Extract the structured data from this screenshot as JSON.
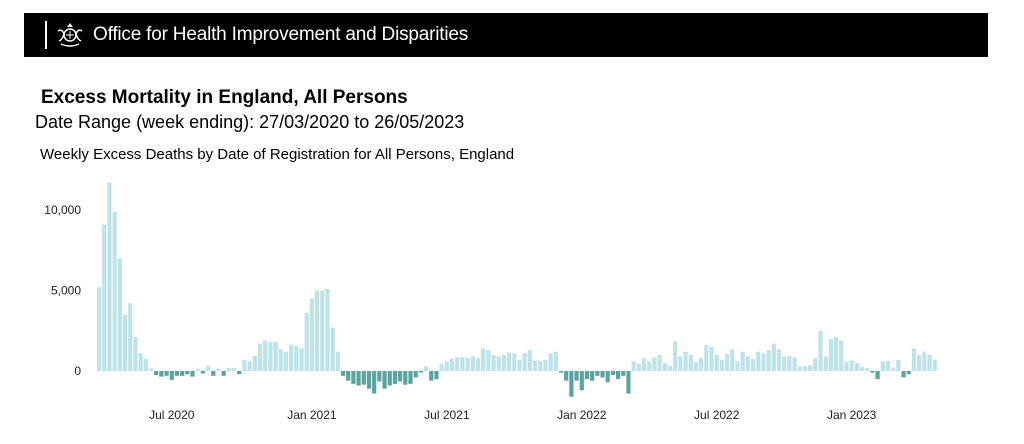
{
  "header": {
    "org_name": "Office for Health Improvement and Disparities",
    "crest_icon": "royal-coat-of-arms-icon"
  },
  "report": {
    "title": "Excess Mortality in England, All Persons",
    "date_range": "Date Range (week ending): 27/03/2020 to 26/05/2023"
  },
  "chart_data": {
    "type": "bar",
    "title": "Weekly Excess Deaths by Date of Registration for All Persons, England",
    "xlabel": "",
    "ylabel": "",
    "ylim": [
      -2000,
      12000
    ],
    "yticks": [
      0,
      5000,
      10000
    ],
    "ytick_labels": [
      "0",
      "5,000",
      "10,000"
    ],
    "x_tick_labels": [
      {
        "label": "Jul 2020",
        "week_index": 14
      },
      {
        "label": "Jan 2021",
        "week_index": 41
      },
      {
        "label": "Jul 2021",
        "week_index": 67
      },
      {
        "label": "Jan 2022",
        "week_index": 93
      },
      {
        "label": "Jul 2022",
        "week_index": 119
      },
      {
        "label": "Jan 2023",
        "week_index": 145
      }
    ],
    "positive_color": "#bde3e8",
    "negative_color": "#5ba39f",
    "values": [
      5200,
      9100,
      11700,
      9900,
      7000,
      3500,
      4200,
      2100,
      1100,
      750,
      150,
      -250,
      -350,
      -300,
      -550,
      -300,
      -300,
      -200,
      -350,
      150,
      -150,
      300,
      -300,
      150,
      -300,
      200,
      200,
      -200,
      700,
      600,
      950,
      1700,
      1900,
      1800,
      1800,
      1350,
      1200,
      1650,
      1550,
      1400,
      3600,
      4500,
      5000,
      5000,
      5100,
      2700,
      1200,
      -300,
      -600,
      -800,
      -900,
      -850,
      -1100,
      -1400,
      -650,
      -1100,
      -900,
      -800,
      -650,
      -850,
      -800,
      -400,
      -100,
      300,
      -600,
      -500,
      450,
      600,
      750,
      850,
      850,
      800,
      900,
      800,
      1400,
      1300,
      1000,
      900,
      1000,
      1150,
      1100,
      700,
      1100,
      1300,
      650,
      650,
      700,
      1100,
      1200,
      -100,
      -600,
      -1600,
      -600,
      -1200,
      -500,
      -600,
      -300,
      -400,
      -700,
      -250,
      -500,
      -300,
      -1400,
      600,
      450,
      800,
      600,
      850,
      1000,
      500,
      300,
      1850,
      900,
      1200,
      1000,
      550,
      800,
      1600,
      1500,
      1000,
      700,
      1050,
      1350,
      600,
      1200,
      900,
      750,
      1200,
      1100,
      1300,
      1700,
      1350,
      900,
      950,
      850,
      300,
      300,
      350,
      800,
      2500,
      900,
      2000,
      2100,
      1900,
      550,
      650,
      500,
      250,
      200,
      -100,
      -500,
      600,
      600,
      200,
      700,
      -400,
      -200,
      1400,
      1000,
      1200,
      1000,
      700
    ]
  }
}
